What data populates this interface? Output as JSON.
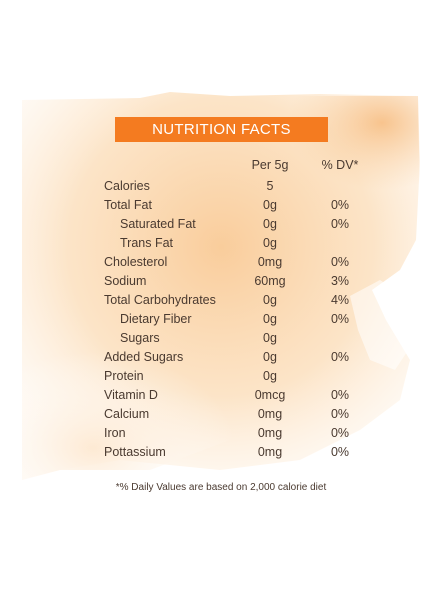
{
  "header": {
    "title": "NUTRITION FACTS"
  },
  "columns": {
    "per": "Per 5g",
    "dv": "% DV*"
  },
  "rows": [
    {
      "name": "Calories",
      "per": "5",
      "dv": "",
      "indent": false
    },
    {
      "name": "Total Fat",
      "per": "0g",
      "dv": "0%",
      "indent": false
    },
    {
      "name": "Saturated Fat",
      "per": "0g",
      "dv": "0%",
      "indent": true
    },
    {
      "name": "Trans Fat",
      "per": "0g",
      "dv": "",
      "indent": true
    },
    {
      "name": "Cholesterol",
      "per": "0mg",
      "dv": "0%",
      "indent": false
    },
    {
      "name": "Sodium",
      "per": "60mg",
      "dv": "3%",
      "indent": false
    },
    {
      "name": "Total Carbohydrates",
      "per": "0g",
      "dv": "4%",
      "indent": false
    },
    {
      "name": "Dietary Fiber",
      "per": "0g",
      "dv": "0%",
      "indent": true
    },
    {
      "name": "Sugars",
      "per": "0g",
      "dv": "",
      "indent": true
    },
    {
      "name": "Added Sugars",
      "per": "0g",
      "dv": "0%",
      "indent": false
    },
    {
      "name": "Protein",
      "per": "0g",
      "dv": "",
      "indent": false
    },
    {
      "name": "Vitamin D",
      "per": "0mcg",
      "dv": "0%",
      "indent": false
    },
    {
      "name": "Calcium",
      "per": "0mg",
      "dv": "0%",
      "indent": false
    },
    {
      "name": "Iron",
      "per": "0mg",
      "dv": "0%",
      "indent": false
    },
    {
      "name": "Pottassium",
      "per": "0mg",
      "dv": "0%",
      "indent": false
    }
  ],
  "footnote": "*% Daily Values are based on 2,000 calorie diet",
  "colors": {
    "accent": "#f47b20",
    "wash": "#f9c98f",
    "text": "#4a3a30"
  }
}
